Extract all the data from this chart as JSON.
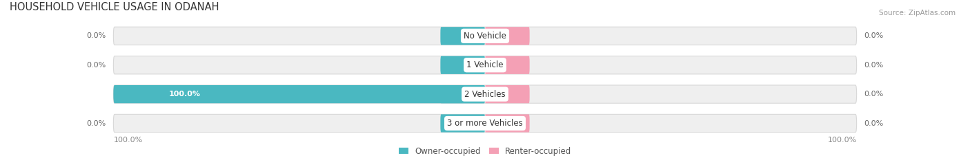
{
  "title": "HOUSEHOLD VEHICLE USAGE IN ODANAH",
  "source": "Source: ZipAtlas.com",
  "categories": [
    "No Vehicle",
    "1 Vehicle",
    "2 Vehicles",
    "3 or more Vehicles"
  ],
  "owner_values": [
    0.0,
    0.0,
    100.0,
    0.0
  ],
  "renter_values": [
    0.0,
    0.0,
    0.0,
    0.0
  ],
  "owner_color": "#4ab8c1",
  "renter_color": "#f4a0b5",
  "bar_bg_color": "#efefef",
  "bar_height": 0.62,
  "max_value": 100.0,
  "title_fontsize": 10.5,
  "label_fontsize": 8.0,
  "category_fontsize": 8.5,
  "axis_label_fontsize": 8,
  "legend_fontsize": 8.5,
  "owner_label": "Owner-occupied",
  "renter_label": "Renter-occupied",
  "left_axis_label": "100.0%",
  "right_axis_label": "100.0%",
  "background_color": "#ffffff"
}
